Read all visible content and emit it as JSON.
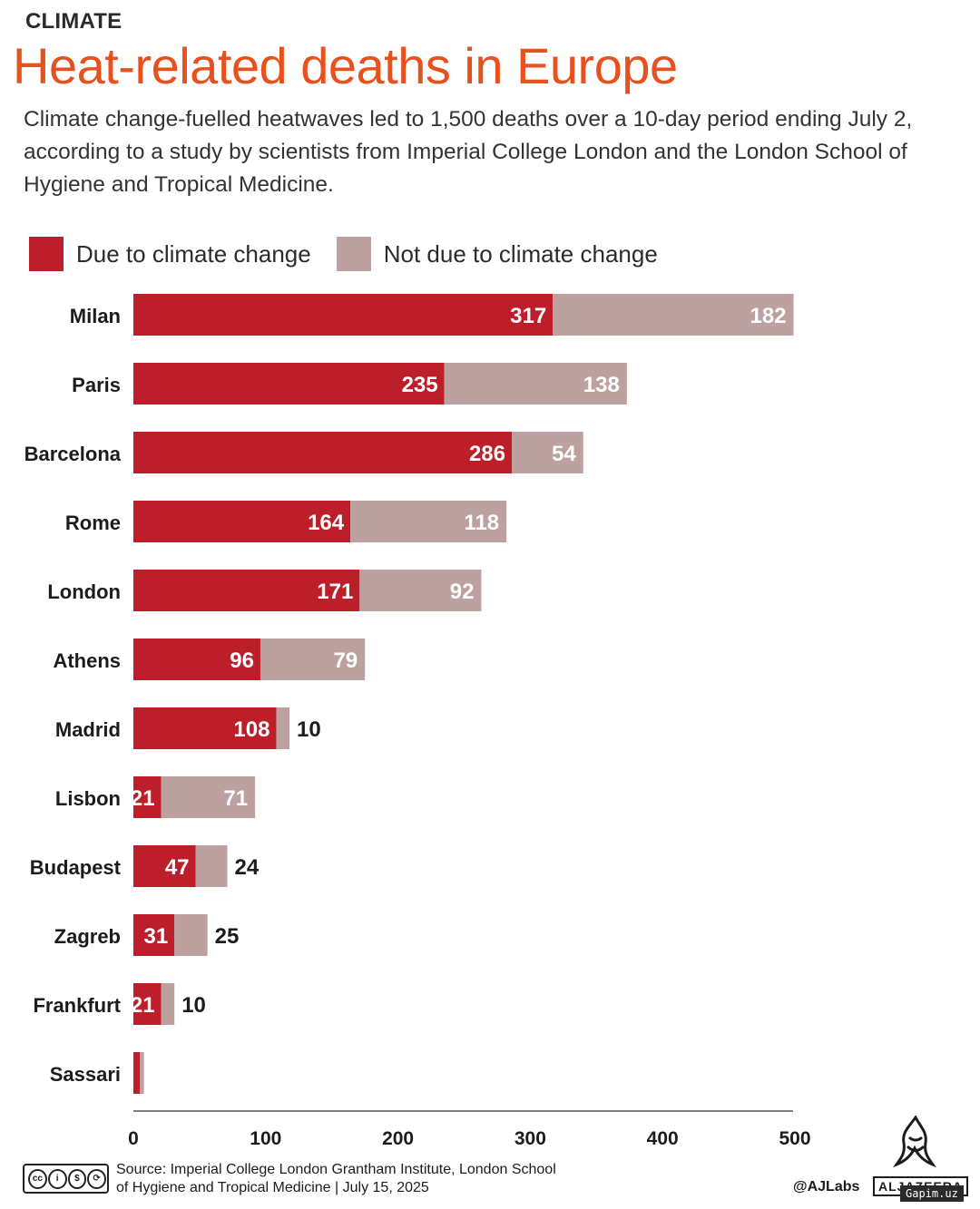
{
  "header": {
    "kicker": "CLIMATE",
    "title": "Heat-related deaths in Europe",
    "subtitle": "Climate change-fuelled heatwaves led to 1,500 deaths over a 10-day period ending July 2, according to a study by scientists from Imperial College London and the London School of Hygiene and Tropical Medicine."
  },
  "colors": {
    "title": "#e8501e",
    "climate": "#bc1f2a",
    "not_climate": "#bda0a0"
  },
  "chart_data": {
    "type": "bar",
    "orientation": "horizontal",
    "stacked": true,
    "categories": [
      "Milan",
      "Paris",
      "Barcelona",
      "Rome",
      "London",
      "Athens",
      "Madrid",
      "Lisbon",
      "Budapest",
      "Zagreb",
      "Frankfurt",
      "Sassari"
    ],
    "series": [
      {
        "name": "Due to climate change",
        "values": [
          317,
          235,
          286,
          164,
          171,
          96,
          108,
          21,
          47,
          31,
          21,
          5
        ]
      },
      {
        "name": "Not due to climate change",
        "values": [
          182,
          138,
          54,
          118,
          92,
          79,
          10,
          71,
          24,
          25,
          10,
          3
        ]
      }
    ],
    "value_labels": {
      "climate": [
        "317",
        "235",
        "286",
        "164",
        "171",
        "96",
        "108",
        "21",
        "47",
        "31",
        "21",
        ""
      ],
      "not_climate": [
        "182",
        "138",
        "54",
        "118",
        "92",
        "79",
        "10",
        "71",
        "24",
        "25",
        "10",
        ""
      ]
    },
    "xlim": [
      0,
      500
    ],
    "xticks": [
      "0",
      "100",
      "200",
      "300",
      "400",
      "500"
    ],
    "legend_position": "top-left",
    "grid": false
  },
  "footer": {
    "license": "CC BY NC SA",
    "license_glyphs": [
      "cc",
      "i",
      "$",
      "⟳"
    ],
    "source_line1": "Source:  Imperial College London Grantham Institute, London School",
    "source_line2": "of Hygiene and Tropical Medicine      |      July 15, 2025",
    "handle": "@AJLabs",
    "brand": "ALJAZEERA",
    "watermark": "Gapim.uz"
  }
}
